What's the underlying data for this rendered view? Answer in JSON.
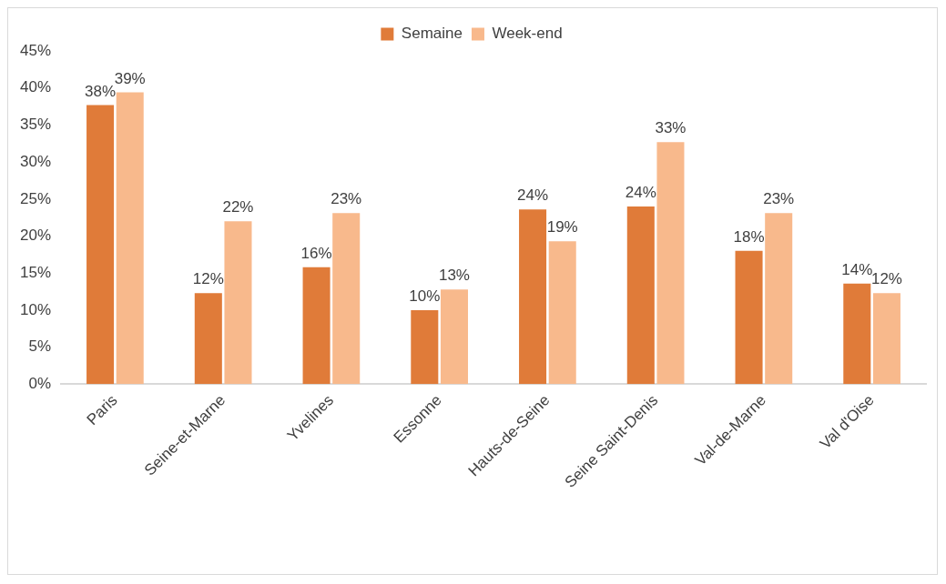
{
  "chart_data": {
    "type": "bar",
    "categories": [
      "Paris",
      "Seine-et-Marne",
      "Yvelines",
      "Essonne",
      "Hauts-de-Seine",
      "Seine Saint-Denis",
      "Val-de-Marne",
      "Val d'Oise"
    ],
    "series": [
      {
        "name": "Semaine",
        "color": "#e07b39",
        "values": [
          37.7,
          12.3,
          15.8,
          10.0,
          23.6,
          24.0,
          18.0,
          13.6
        ],
        "value_labels": [
          "38%",
          "12%",
          "16%",
          "10%",
          "24%",
          "24%",
          "18%",
          "14%"
        ]
      },
      {
        "name": "Week-end",
        "color": "#f8b98c",
        "values": [
          39.4,
          22.0,
          23.1,
          12.8,
          19.3,
          32.7,
          23.1,
          12.3
        ],
        "value_labels": [
          "39%",
          "22%",
          "23%",
          "13%",
          "19%",
          "33%",
          "23%",
          "12%"
        ]
      }
    ],
    "ylim": [
      0,
      45
    ],
    "yticks": [
      {
        "value": 0,
        "label": "0%"
      },
      {
        "value": 5,
        "label": "5%"
      },
      {
        "value": 10,
        "label": "10%"
      },
      {
        "value": 15,
        "label": "15%"
      },
      {
        "value": 20,
        "label": "20%"
      },
      {
        "value": 25,
        "label": "25%"
      },
      {
        "value": 30,
        "label": "30%"
      },
      {
        "value": 35,
        "label": "35%"
      },
      {
        "value": 40,
        "label": "40%"
      },
      {
        "value": 45,
        "label": "45%"
      }
    ],
    "grid": false,
    "legend": "top"
  }
}
